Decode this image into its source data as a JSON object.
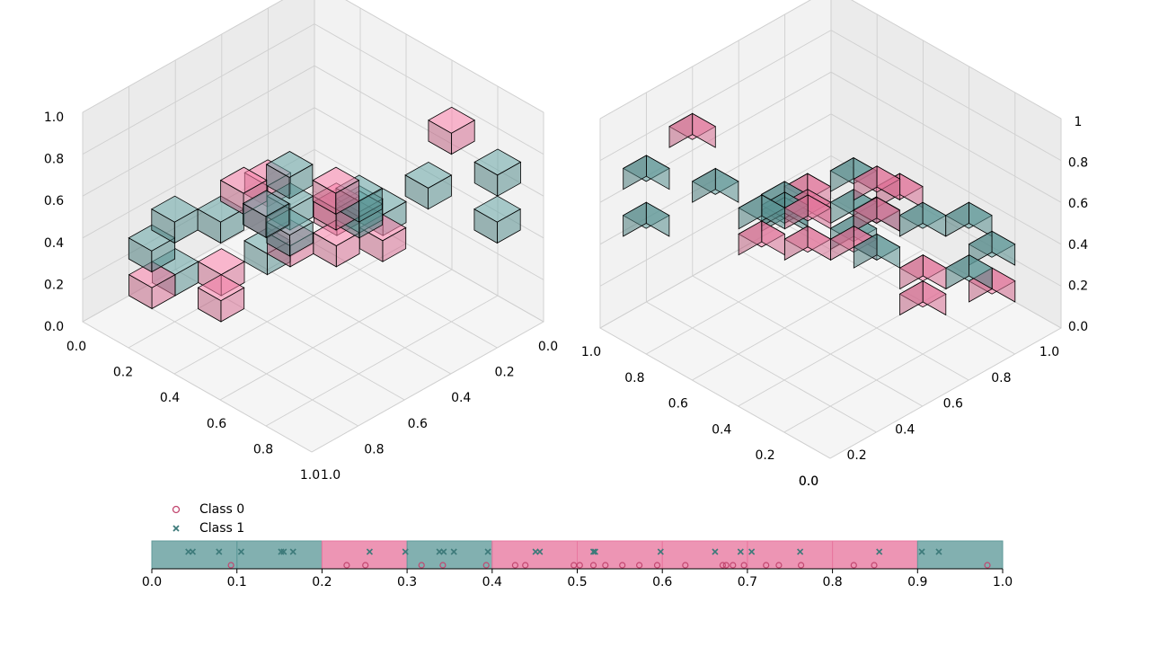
{
  "colors": {
    "class0": "#e8779f",
    "class1": "#5f9a9a",
    "class0_marker": "#c2466f",
    "class1_marker": "#3d7a7a"
  },
  "legend": [
    {
      "label": "Class 0",
      "marker": "circle"
    },
    {
      "label": "Class 1",
      "marker": "x"
    }
  ],
  "chart_data": [
    {
      "type": "scatter3d",
      "title": "",
      "view": "left 3D view of voxel-classified space",
      "axes": {
        "x_ticks": [
          "0.0",
          "0.2",
          "0.4",
          "0.6",
          "0.8",
          "1.0"
        ],
        "y_ticks": [
          "0.0",
          "0.2",
          "0.4",
          "0.6",
          "0.8",
          "1.0"
        ],
        "z_ticks": [
          "0.0",
          "0.2",
          "0.4",
          "0.6",
          "0.8",
          "1.0"
        ],
        "range": [
          0,
          1
        ]
      },
      "voxels_class0": [
        [
          0.35,
          0.45,
          0.75
        ],
        [
          0.55,
          0.25,
          0.75
        ],
        [
          0.45,
          0.55,
          0.55
        ],
        [
          0.65,
          0.45,
          0.45
        ],
        [
          0.75,
          0.35,
          0.05
        ],
        [
          0.85,
          0.45,
          0.05
        ],
        [
          0.55,
          0.65,
          0.25
        ],
        [
          0.65,
          0.55,
          0.25
        ],
        [
          0.75,
          0.85,
          0.15
        ],
        [
          0.95,
          0.25,
          0.05
        ],
        [
          0.25,
          0.85,
          0.85
        ],
        [
          0.85,
          0.65,
          0.35
        ],
        [
          0.55,
          0.85,
          0.15
        ]
      ],
      "voxels_class1": [
        [
          0.25,
          0.05,
          0.95
        ],
        [
          0.35,
          0.25,
          0.95
        ],
        [
          0.05,
          0.85,
          0.55
        ],
        [
          0.15,
          0.95,
          0.65
        ],
        [
          0.45,
          0.65,
          0.45
        ],
        [
          0.55,
          0.45,
          0.55
        ],
        [
          0.45,
          0.35,
          0.55
        ],
        [
          0.35,
          0.55,
          0.65
        ],
        [
          0.65,
          0.25,
          0.55
        ],
        [
          0.75,
          0.15,
          0.55
        ],
        [
          0.25,
          0.75,
          0.65
        ],
        [
          0.75,
          0.55,
          0.15
        ],
        [
          0.95,
          0.35,
          0.05
        ],
        [
          0.65,
          0.95,
          0.15
        ],
        [
          0.55,
          0.75,
          0.35
        ],
        [
          0.85,
          0.15,
          0.35
        ]
      ]
    },
    {
      "type": "scatter3d",
      "title": "",
      "view": "right 3D view of the same space (rotated)",
      "axes": {
        "x_ticks": [
          "0.0",
          "0.2",
          "0.4",
          "0.6",
          "0.8",
          "1.0"
        ],
        "y_ticks": [
          "1.0",
          "0.8",
          "0.6",
          "0.4",
          "0.2",
          "0.0"
        ],
        "z_ticks": [
          "0.0",
          "0.2",
          "0.4",
          "0.6",
          "0.8",
          "1"
        ],
        "range": [
          0,
          1
        ]
      },
      "voxels_class0": [
        [
          0.35,
          0.45,
          0.75
        ],
        [
          0.55,
          0.25,
          0.75
        ],
        [
          0.45,
          0.55,
          0.55
        ],
        [
          0.65,
          0.45,
          0.45
        ],
        [
          0.75,
          0.35,
          0.05
        ],
        [
          0.85,
          0.45,
          0.05
        ],
        [
          0.55,
          0.65,
          0.25
        ],
        [
          0.65,
          0.55,
          0.25
        ],
        [
          0.75,
          0.85,
          0.15
        ],
        [
          0.95,
          0.25,
          0.05
        ],
        [
          0.25,
          0.85,
          0.85
        ],
        [
          0.85,
          0.65,
          0.35
        ],
        [
          0.55,
          0.85,
          0.15
        ]
      ],
      "voxels_class1": [
        [
          0.25,
          0.05,
          0.95
        ],
        [
          0.35,
          0.25,
          0.95
        ],
        [
          0.05,
          0.85,
          0.55
        ],
        [
          0.15,
          0.95,
          0.65
        ],
        [
          0.45,
          0.65,
          0.45
        ],
        [
          0.55,
          0.45,
          0.55
        ],
        [
          0.45,
          0.35,
          0.55
        ],
        [
          0.35,
          0.55,
          0.65
        ],
        [
          0.65,
          0.25,
          0.55
        ],
        [
          0.75,
          0.15,
          0.55
        ],
        [
          0.25,
          0.75,
          0.65
        ],
        [
          0.75,
          0.55,
          0.15
        ],
        [
          0.95,
          0.35,
          0.05
        ],
        [
          0.65,
          0.95,
          0.15
        ],
        [
          0.55,
          0.75,
          0.35
        ],
        [
          0.85,
          0.15,
          0.35
        ]
      ]
    },
    {
      "type": "strip1d",
      "title": "",
      "xlim": [
        0,
        1
      ],
      "x_ticks": [
        "0.0",
        "0.1",
        "0.2",
        "0.3",
        "0.4",
        "0.5",
        "0.6",
        "0.7",
        "0.8",
        "0.9",
        "1.0"
      ],
      "bins": [
        {
          "start": 0.0,
          "end": 0.1,
          "class": 1
        },
        {
          "start": 0.1,
          "end": 0.2,
          "class": 1
        },
        {
          "start": 0.2,
          "end": 0.3,
          "class": 0
        },
        {
          "start": 0.3,
          "end": 0.4,
          "class": 1
        },
        {
          "start": 0.4,
          "end": 0.5,
          "class": 0
        },
        {
          "start": 0.5,
          "end": 0.6,
          "class": 0
        },
        {
          "start": 0.6,
          "end": 0.7,
          "class": 0
        },
        {
          "start": 0.7,
          "end": 0.8,
          "class": 0
        },
        {
          "start": 0.8,
          "end": 0.9,
          "class": 0
        },
        {
          "start": 0.9,
          "end": 1.0,
          "class": 1
        }
      ],
      "class1_points": [
        0.043,
        0.048,
        0.079,
        0.105,
        0.152,
        0.155,
        0.166,
        0.256,
        0.298,
        0.338,
        0.343,
        0.355,
        0.395,
        0.451,
        0.456,
        0.519,
        0.521,
        0.598,
        0.662,
        0.692,
        0.705,
        0.762,
        0.855,
        0.905,
        0.925
      ],
      "class0_points": [
        0.093,
        0.229,
        0.251,
        0.317,
        0.342,
        0.393,
        0.427,
        0.439,
        0.496,
        0.503,
        0.519,
        0.533,
        0.553,
        0.573,
        0.594,
        0.627,
        0.671,
        0.675,
        0.683,
        0.696,
        0.722,
        0.737,
        0.763,
        0.825,
        0.849,
        0.982
      ]
    }
  ]
}
